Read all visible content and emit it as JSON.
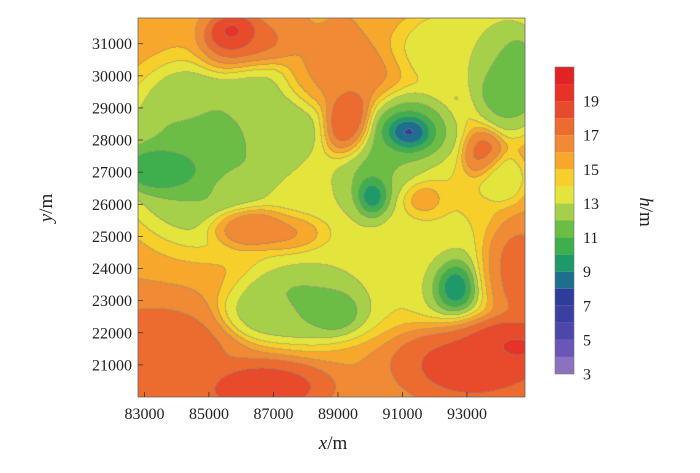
{
  "chart_data": {
    "type": "heatmap",
    "style": "filled contour map",
    "xlabel": {
      "symbol": "x",
      "unit": "/m"
    },
    "ylabel": {
      "symbol": "y",
      "unit": "/m"
    },
    "colorbar_label": {
      "symbol": "h",
      "unit": "/m"
    },
    "xlim": [
      82800,
      94800
    ],
    "ylim": [
      20000,
      31800
    ],
    "xticks": [
      "83000",
      "85000",
      "87000",
      "89000",
      "91000",
      "93000"
    ],
    "yticks": [
      "21000",
      "22000",
      "23000",
      "24000",
      "25000",
      "26000",
      "27000",
      "28000",
      "29000",
      "30000",
      "31000"
    ],
    "colorbar": {
      "range": [
        3,
        21
      ],
      "ticks": [
        "3",
        "5",
        "7",
        "9",
        "11",
        "13",
        "15",
        "17",
        "19"
      ],
      "bands": [
        {
          "from": 3,
          "to": 4,
          "color": "#8a72c0"
        },
        {
          "from": 4,
          "to": 5,
          "color": "#6a56b4"
        },
        {
          "from": 5,
          "to": 6,
          "color": "#4d47a9"
        },
        {
          "from": 6,
          "to": 7,
          "color": "#3b3fa0"
        },
        {
          "from": 7,
          "to": 8,
          "color": "#2e3d99"
        },
        {
          "from": 8,
          "to": 9,
          "color": "#1e6e8e"
        },
        {
          "from": 9,
          "to": 10,
          "color": "#1e9a6a"
        },
        {
          "from": 10,
          "to": 11,
          "color": "#3fae4c"
        },
        {
          "from": 11,
          "to": 12,
          "color": "#6cbd45"
        },
        {
          "from": 12,
          "to": 13,
          "color": "#a7d04a"
        },
        {
          "from": 13,
          "to": 14,
          "color": "#e3e43c"
        },
        {
          "from": 14,
          "to": 15,
          "color": "#f7cf2a"
        },
        {
          "from": 15,
          "to": 16,
          "color": "#f7a72c"
        },
        {
          "from": 16,
          "to": 17,
          "color": "#f08a34"
        },
        {
          "from": 17,
          "to": 18,
          "color": "#ec6b2e"
        },
        {
          "from": 18,
          "to": 19,
          "color": "#e84a2c"
        },
        {
          "from": 19,
          "to": 20,
          "color": "#e63227"
        },
        {
          "from": 20,
          "to": 21,
          "color": "#e12326"
        }
      ]
    },
    "background_level": 16,
    "features": [
      {
        "x": 83700,
        "y": 27100,
        "h": 9,
        "sx": 900,
        "sy": 500
      },
      {
        "x": 84800,
        "y": 27600,
        "h": 11.5,
        "sx": 1600,
        "sy": 1700
      },
      {
        "x": 86800,
        "y": 28600,
        "h": 12,
        "sx": 1300,
        "sy": 1200
      },
      {
        "x": 86500,
        "y": 29800,
        "h": 12.5,
        "sx": 700,
        "sy": 500
      },
      {
        "x": 84200,
        "y": 29300,
        "h": 12.5,
        "sx": 600,
        "sy": 500
      },
      {
        "x": 86000,
        "y": 26500,
        "h": 13,
        "sx": 600,
        "sy": 400
      },
      {
        "x": 88200,
        "y": 23000,
        "h": 11.5,
        "sx": 1400,
        "sy": 800
      },
      {
        "x": 88900,
        "y": 22700,
        "h": 10.5,
        "sx": 500,
        "sy": 400
      },
      {
        "x": 86800,
        "y": 22600,
        "h": 12.5,
        "sx": 800,
        "sy": 500
      },
      {
        "x": 90100,
        "y": 26200,
        "h": 4,
        "sx": 400,
        "sy": 500
      },
      {
        "x": 90200,
        "y": 26700,
        "h": 11,
        "sx": 900,
        "sy": 1000
      },
      {
        "x": 91200,
        "y": 28200,
        "h": 4,
        "sx": 500,
        "sy": 400
      },
      {
        "x": 91200,
        "y": 28100,
        "h": 11,
        "sx": 1000,
        "sy": 900
      },
      {
        "x": 92600,
        "y": 23500,
        "h": 5,
        "sx": 450,
        "sy": 550
      },
      {
        "x": 92500,
        "y": 23700,
        "h": 11.5,
        "sx": 900,
        "sy": 1000
      },
      {
        "x": 94300,
        "y": 30000,
        "h": 11,
        "sx": 800,
        "sy": 1100
      },
      {
        "x": 94000,
        "y": 26800,
        "h": 13,
        "sx": 500,
        "sy": 500
      },
      {
        "x": 92800,
        "y": 30800,
        "h": 13,
        "sx": 1200,
        "sy": 800
      },
      {
        "x": 89800,
        "y": 25200,
        "h": 13,
        "sx": 2000,
        "sy": 1500
      },
      {
        "x": 91500,
        "y": 25000,
        "h": 14,
        "sx": 1500,
        "sy": 1800
      },
      {
        "x": 85800,
        "y": 31200,
        "h": 20,
        "sx": 500,
        "sy": 400
      },
      {
        "x": 86200,
        "y": 30800,
        "h": 17.5,
        "sx": 900,
        "sy": 600
      },
      {
        "x": 89300,
        "y": 28600,
        "h": 18.5,
        "sx": 500,
        "sy": 800
      },
      {
        "x": 88800,
        "y": 29900,
        "h": 16.5,
        "sx": 1200,
        "sy": 700
      },
      {
        "x": 86300,
        "y": 25300,
        "h": 17.5,
        "sx": 800,
        "sy": 400
      },
      {
        "x": 87700,
        "y": 25100,
        "h": 17,
        "sx": 900,
        "sy": 400
      },
      {
        "x": 91600,
        "y": 26100,
        "h": 18,
        "sx": 500,
        "sy": 400
      },
      {
        "x": 93500,
        "y": 27500,
        "h": 17.5,
        "sx": 400,
        "sy": 500
      },
      {
        "x": 94300,
        "y": 21500,
        "h": 19.5,
        "sx": 900,
        "sy": 500
      },
      {
        "x": 93200,
        "y": 21200,
        "h": 18.5,
        "sx": 1500,
        "sy": 900
      },
      {
        "x": 86600,
        "y": 20300,
        "h": 18.5,
        "sx": 1300,
        "sy": 500
      },
      {
        "x": 83300,
        "y": 21300,
        "h": 17.5,
        "sx": 1500,
        "sy": 1000
      },
      {
        "x": 94300,
        "y": 24000,
        "h": 17.5,
        "sx": 800,
        "sy": 900
      }
    ]
  }
}
